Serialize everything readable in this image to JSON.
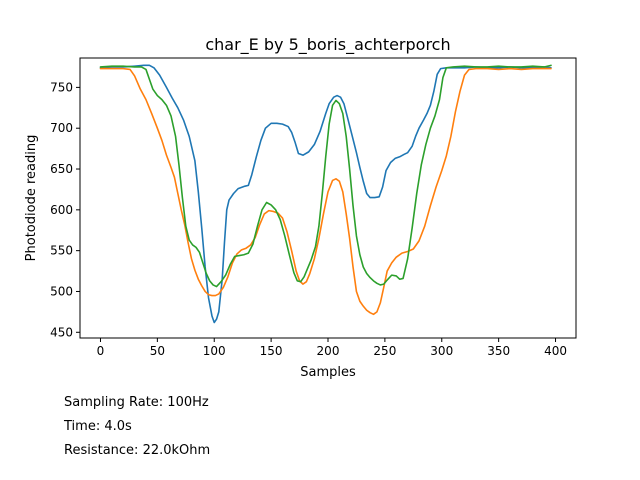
{
  "chart_data": {
    "type": "line",
    "title": "char_E by 5_boris_achterporch",
    "xlabel": "Samples",
    "ylabel": "Photodiode reading",
    "xlim": [
      -18,
      418
    ],
    "ylim": [
      443,
      786
    ],
    "xticks": [
      0,
      50,
      100,
      150,
      200,
      250,
      300,
      350,
      400
    ],
    "yticks": [
      450,
      500,
      550,
      600,
      650,
      700,
      750
    ],
    "grid": false,
    "legend": false,
    "colors": [
      "#1f77b4",
      "#ff7f0e",
      "#2ca02c"
    ],
    "series": [
      {
        "color": "#1f77b4",
        "points": [
          [
            0,
            774
          ],
          [
            10,
            775
          ],
          [
            20,
            775
          ],
          [
            30,
            776
          ],
          [
            38,
            777
          ],
          [
            43,
            777
          ],
          [
            47,
            774
          ],
          [
            52,
            765
          ],
          [
            58,
            750
          ],
          [
            63,
            737
          ],
          [
            68,
            725
          ],
          [
            73,
            710
          ],
          [
            78,
            690
          ],
          [
            83,
            660
          ],
          [
            86,
            622
          ],
          [
            89,
            578
          ],
          [
            92,
            530
          ],
          [
            95,
            492
          ],
          [
            98,
            470
          ],
          [
            100,
            462
          ],
          [
            102,
            466
          ],
          [
            104,
            475
          ],
          [
            107,
            515
          ],
          [
            109,
            560
          ],
          [
            111,
            600
          ],
          [
            113,
            612
          ],
          [
            117,
            620
          ],
          [
            121,
            626
          ],
          [
            127,
            629
          ],
          [
            130,
            630
          ],
          [
            133,
            643
          ],
          [
            137,
            665
          ],
          [
            141,
            685
          ],
          [
            145,
            700
          ],
          [
            150,
            706
          ],
          [
            155,
            706
          ],
          [
            160,
            705
          ],
          [
            165,
            702
          ],
          [
            168,
            695
          ],
          [
            171,
            683
          ],
          [
            174,
            669
          ],
          [
            178,
            667
          ],
          [
            183,
            671
          ],
          [
            188,
            680
          ],
          [
            193,
            696
          ],
          [
            198,
            718
          ],
          [
            201,
            730
          ],
          [
            205,
            738
          ],
          [
            208,
            740
          ],
          [
            211,
            738
          ],
          [
            214,
            730
          ],
          [
            217,
            714
          ],
          [
            221,
            692
          ],
          [
            225,
            670
          ],
          [
            228,
            652
          ],
          [
            231,
            635
          ],
          [
            234,
            620
          ],
          [
            237,
            615
          ],
          [
            241,
            615
          ],
          [
            245,
            616
          ],
          [
            248,
            628
          ],
          [
            251,
            648
          ],
          [
            255,
            658
          ],
          [
            259,
            663
          ],
          [
            263,
            665
          ],
          [
            267,
            668
          ],
          [
            270,
            670
          ],
          [
            274,
            678
          ],
          [
            277,
            690
          ],
          [
            280,
            700
          ],
          [
            284,
            710
          ],
          [
            287,
            718
          ],
          [
            290,
            728
          ],
          [
            293,
            745
          ],
          [
            296,
            766
          ],
          [
            299,
            773
          ],
          [
            304,
            774
          ],
          [
            310,
            774
          ],
          [
            320,
            774
          ],
          [
            330,
            775
          ],
          [
            340,
            774
          ],
          [
            350,
            774
          ],
          [
            360,
            775
          ],
          [
            370,
            774
          ],
          [
            380,
            774
          ],
          [
            390,
            775
          ],
          [
            396,
            774
          ]
        ]
      },
      {
        "color": "#ff7f0e",
        "points": [
          [
            0,
            773
          ],
          [
            10,
            773
          ],
          [
            20,
            773
          ],
          [
            26,
            772
          ],
          [
            30,
            764
          ],
          [
            35,
            748
          ],
          [
            40,
            735
          ],
          [
            45,
            718
          ],
          [
            50,
            700
          ],
          [
            54,
            685
          ],
          [
            58,
            667
          ],
          [
            62,
            652
          ],
          [
            65,
            640
          ],
          [
            68,
            620
          ],
          [
            71,
            600
          ],
          [
            74,
            582
          ],
          [
            77,
            560
          ],
          [
            80,
            540
          ],
          [
            83,
            526
          ],
          [
            86,
            515
          ],
          [
            89,
            507
          ],
          [
            92,
            500
          ],
          [
            95,
            496
          ],
          [
            98,
            495
          ],
          [
            101,
            495
          ],
          [
            104,
            497
          ],
          [
            108,
            505
          ],
          [
            112,
            518
          ],
          [
            116,
            535
          ],
          [
            120,
            546
          ],
          [
            124,
            551
          ],
          [
            128,
            553
          ],
          [
            132,
            557
          ],
          [
            136,
            566
          ],
          [
            140,
            582
          ],
          [
            144,
            595
          ],
          [
            148,
            599
          ],
          [
            152,
            598
          ],
          [
            156,
            596
          ],
          [
            160,
            590
          ],
          [
            164,
            573
          ],
          [
            168,
            550
          ],
          [
            172,
            525
          ],
          [
            175,
            513
          ],
          [
            178,
            509
          ],
          [
            181,
            512
          ],
          [
            184,
            522
          ],
          [
            188,
            540
          ],
          [
            192,
            565
          ],
          [
            196,
            595
          ],
          [
            200,
            622
          ],
          [
            204,
            636
          ],
          [
            207,
            638
          ],
          [
            210,
            635
          ],
          [
            213,
            622
          ],
          [
            216,
            595
          ],
          [
            219,
            565
          ],
          [
            222,
            530
          ],
          [
            225,
            500
          ],
          [
            228,
            488
          ],
          [
            231,
            482
          ],
          [
            234,
            477
          ],
          [
            237,
            474
          ],
          [
            240,
            472
          ],
          [
            243,
            475
          ],
          [
            246,
            486
          ],
          [
            249,
            505
          ],
          [
            252,
            525
          ],
          [
            256,
            535
          ],
          [
            260,
            542
          ],
          [
            265,
            547
          ],
          [
            270,
            549
          ],
          [
            275,
            552
          ],
          [
            280,
            562
          ],
          [
            285,
            580
          ],
          [
            290,
            605
          ],
          [
            295,
            628
          ],
          [
            300,
            648
          ],
          [
            304,
            666
          ],
          [
            308,
            690
          ],
          [
            312,
            720
          ],
          [
            316,
            745
          ],
          [
            320,
            765
          ],
          [
            324,
            772
          ],
          [
            330,
            773
          ],
          [
            340,
            773
          ],
          [
            350,
            772
          ],
          [
            360,
            773
          ],
          [
            370,
            772
          ],
          [
            380,
            773
          ],
          [
            390,
            773
          ],
          [
            396,
            773
          ]
        ]
      },
      {
        "color": "#2ca02c",
        "points": [
          [
            0,
            775
          ],
          [
            10,
            776
          ],
          [
            20,
            776
          ],
          [
            30,
            775
          ],
          [
            36,
            775
          ],
          [
            40,
            772
          ],
          [
            43,
            760
          ],
          [
            46,
            748
          ],
          [
            50,
            740
          ],
          [
            54,
            735
          ],
          [
            58,
            728
          ],
          [
            62,
            715
          ],
          [
            66,
            690
          ],
          [
            69,
            655
          ],
          [
            72,
            615
          ],
          [
            75,
            580
          ],
          [
            78,
            563
          ],
          [
            81,
            557
          ],
          [
            84,
            554
          ],
          [
            87,
            548
          ],
          [
            90,
            535
          ],
          [
            93,
            522
          ],
          [
            96,
            513
          ],
          [
            99,
            508
          ],
          [
            102,
            506
          ],
          [
            106,
            512
          ],
          [
            110,
            520
          ],
          [
            114,
            533
          ],
          [
            118,
            543
          ],
          [
            122,
            544
          ],
          [
            126,
            545
          ],
          [
            130,
            547
          ],
          [
            134,
            558
          ],
          [
            138,
            580
          ],
          [
            142,
            600
          ],
          [
            146,
            609
          ],
          [
            150,
            606
          ],
          [
            154,
            600
          ],
          [
            158,
            588
          ],
          [
            162,
            568
          ],
          [
            166,
            545
          ],
          [
            170,
            523
          ],
          [
            173,
            513
          ],
          [
            176,
            512
          ],
          [
            179,
            518
          ],
          [
            182,
            528
          ],
          [
            185,
            538
          ],
          [
            189,
            555
          ],
          [
            192,
            580
          ],
          [
            195,
            620
          ],
          [
            198,
            665
          ],
          [
            201,
            705
          ],
          [
            204,
            728
          ],
          [
            207,
            734
          ],
          [
            210,
            730
          ],
          [
            213,
            718
          ],
          [
            216,
            690
          ],
          [
            219,
            650
          ],
          [
            222,
            605
          ],
          [
            225,
            568
          ],
          [
            228,
            545
          ],
          [
            231,
            530
          ],
          [
            234,
            522
          ],
          [
            237,
            517
          ],
          [
            240,
            513
          ],
          [
            243,
            510
          ],
          [
            246,
            508
          ],
          [
            249,
            509
          ],
          [
            252,
            514
          ],
          [
            256,
            520
          ],
          [
            260,
            519
          ],
          [
            263,
            515
          ],
          [
            266,
            516
          ],
          [
            270,
            540
          ],
          [
            274,
            578
          ],
          [
            278,
            620
          ],
          [
            282,
            655
          ],
          [
            286,
            680
          ],
          [
            290,
            700
          ],
          [
            294,
            715
          ],
          [
            298,
            735
          ],
          [
            301,
            762
          ],
          [
            304,
            774
          ],
          [
            310,
            775
          ],
          [
            320,
            776
          ],
          [
            330,
            775
          ],
          [
            340,
            775
          ],
          [
            350,
            776
          ],
          [
            360,
            775
          ],
          [
            370,
            775
          ],
          [
            380,
            776
          ],
          [
            390,
            775
          ],
          [
            396,
            777
          ]
        ]
      }
    ]
  },
  "info": {
    "sampling_rate": "Sampling Rate: 100Hz",
    "time": "Time: 4.0s",
    "resistance": "Resistance: 22.0kOhm"
  }
}
